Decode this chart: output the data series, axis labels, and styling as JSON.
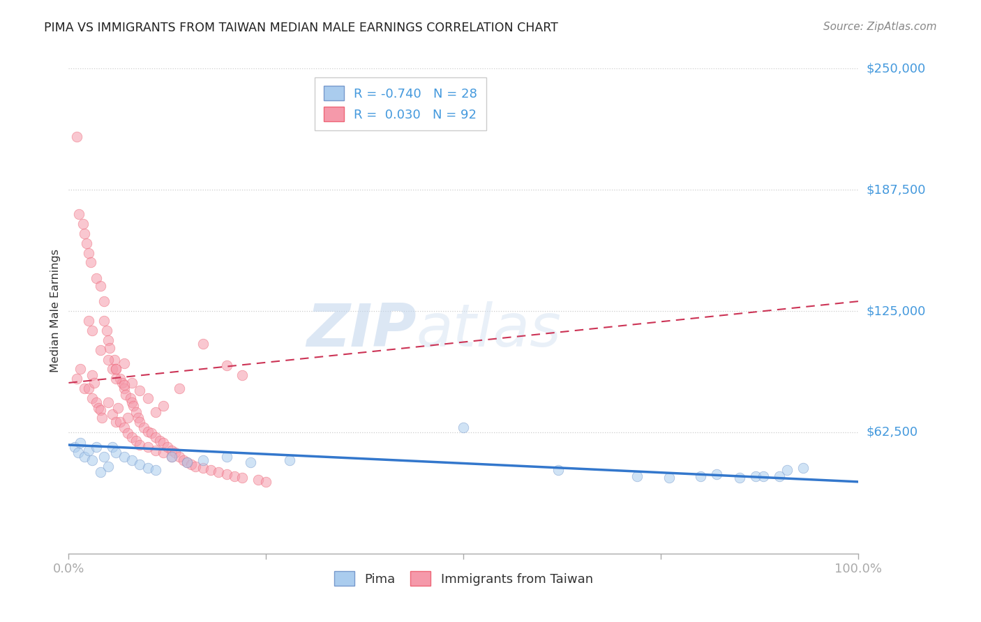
{
  "title": "PIMA VS IMMIGRANTS FROM TAIWAN MEDIAN MALE EARNINGS CORRELATION CHART",
  "source": "Source: ZipAtlas.com",
  "ylabel": "Median Male Earnings",
  "watermark_zip": "ZIP",
  "watermark_atlas": "atlas",
  "xlim": [
    0,
    100
  ],
  "ylim": [
    0,
    250000
  ],
  "right_ytick_vals": [
    62500,
    125000,
    187500,
    250000
  ],
  "right_ytick_labels": [
    "$62,500",
    "$125,000",
    "$187,500",
    "$250,000"
  ],
  "xtick_vals": [
    0,
    25,
    50,
    75,
    100
  ],
  "xtick_labels": [
    "0.0%",
    "",
    "",
    "",
    "100.0%"
  ],
  "background_color": "#ffffff",
  "axis_label_color": "#4499dd",
  "blue_color": "#aaccee",
  "blue_edge_color": "#7799cc",
  "pink_color": "#f599aa",
  "pink_edge_color": "#ee6677",
  "blue_line_color": "#3377cc",
  "pink_line_color": "#cc3355",
  "grid_color": "#cccccc",
  "dot_size": 110,
  "dot_alpha": 0.55,
  "blue_line_x": [
    0,
    100
  ],
  "blue_line_y": [
    56000,
    37000
  ],
  "pink_line_x": [
    0,
    100
  ],
  "pink_line_y": [
    88000,
    130000
  ],
  "blue_scatter_x": [
    0.8,
    1.2,
    1.5,
    2.0,
    2.5,
    3.0,
    3.5,
    4.0,
    4.5,
    5.0,
    5.5,
    6.0,
    7.0,
    8.0,
    9.0,
    10.0,
    11.0,
    13.0,
    15.0,
    17.0,
    20.0,
    23.0,
    28.0,
    50.0,
    62.0,
    72.0,
    80.0,
    87.0,
    90.0,
    93.0,
    76.0,
    82.0,
    85.0,
    88.0,
    91.0
  ],
  "blue_scatter_y": [
    55000,
    52000,
    57000,
    50000,
    53000,
    48000,
    55000,
    42000,
    50000,
    45000,
    55000,
    52000,
    50000,
    48000,
    46000,
    44000,
    43000,
    50000,
    47000,
    48000,
    50000,
    47000,
    48000,
    65000,
    43000,
    40000,
    40000,
    40000,
    40000,
    44000,
    39000,
    41000,
    39000,
    40000,
    43000
  ],
  "pink_scatter_x": [
    1.0,
    1.0,
    1.3,
    1.5,
    1.8,
    2.0,
    2.0,
    2.3,
    2.5,
    2.5,
    2.8,
    3.0,
    3.0,
    3.2,
    3.5,
    3.5,
    3.8,
    4.0,
    4.0,
    4.2,
    4.5,
    4.5,
    4.8,
    5.0,
    5.0,
    5.2,
    5.5,
    5.5,
    5.8,
    6.0,
    6.0,
    6.2,
    6.5,
    6.5,
    6.8,
    7.0,
    7.0,
    7.2,
    7.5,
    7.5,
    7.8,
    8.0,
    8.0,
    8.2,
    8.5,
    8.5,
    8.8,
    9.0,
    9.0,
    9.5,
    10.0,
    10.0,
    10.5,
    11.0,
    11.0,
    11.5,
    12.0,
    12.0,
    12.5,
    13.0,
    13.0,
    13.5,
    14.0,
    14.5,
    15.0,
    15.5,
    16.0,
    17.0,
    18.0,
    19.0,
    20.0,
    21.0,
    22.0,
    24.0,
    25.0,
    17.0,
    20.0,
    22.0,
    14.0,
    11.0,
    7.0,
    4.0,
    3.0,
    6.0,
    8.0,
    9.0,
    10.0,
    12.0,
    6.0,
    7.0,
    5.0,
    2.5
  ],
  "pink_scatter_y": [
    215000,
    90000,
    175000,
    95000,
    170000,
    165000,
    85000,
    160000,
    85000,
    155000,
    150000,
    92000,
    80000,
    88000,
    142000,
    78000,
    75000,
    138000,
    74000,
    70000,
    130000,
    120000,
    115000,
    110000,
    78000,
    106000,
    95000,
    72000,
    100000,
    68000,
    95000,
    75000,
    90000,
    68000,
    88000,
    85000,
    65000,
    82000,
    70000,
    62000,
    80000,
    78000,
    60000,
    76000,
    73000,
    58000,
    70000,
    68000,
    56000,
    65000,
    63000,
    55000,
    62000,
    60000,
    53000,
    58000,
    57000,
    52000,
    55000,
    53000,
    50000,
    52000,
    50000,
    48000,
    47000,
    46000,
    45000,
    44000,
    43000,
    42000,
    41000,
    40000,
    39000,
    38000,
    37000,
    108000,
    97000,
    92000,
    85000,
    73000,
    98000,
    105000,
    115000,
    90000,
    88000,
    84000,
    80000,
    76000,
    95000,
    87000,
    100000,
    120000
  ]
}
